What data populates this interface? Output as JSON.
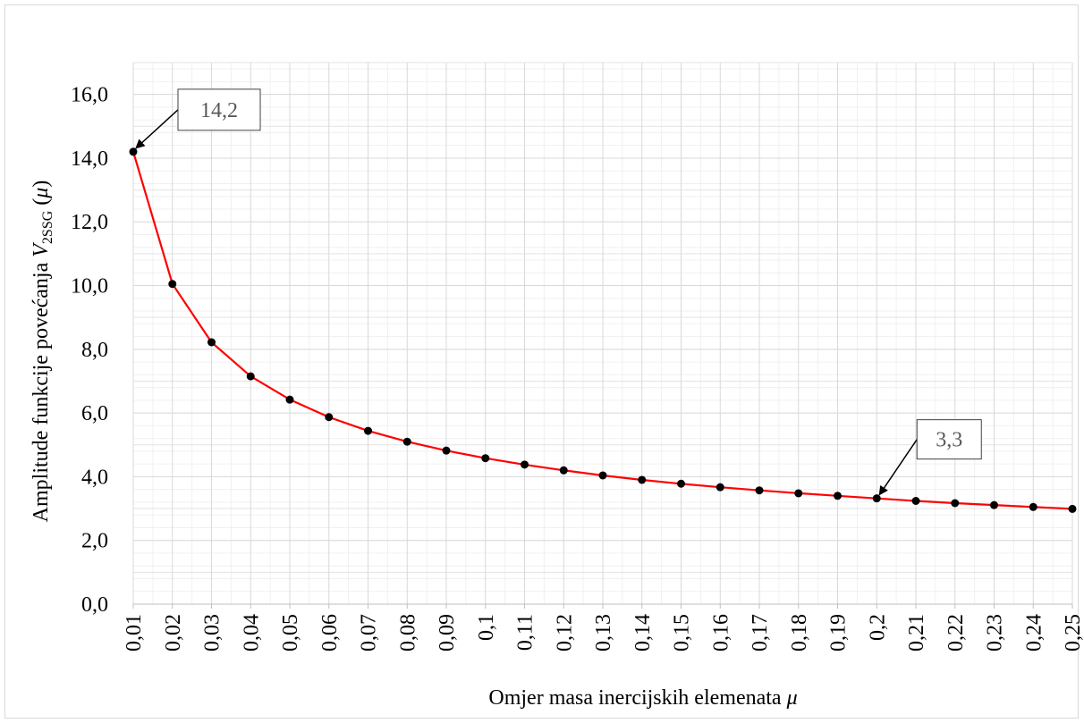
{
  "chart_data": {
    "type": "line",
    "xlabel": {
      "text": "Omjer masa inercijskih elemenata ",
      "symbol": "μ"
    },
    "ylabel": {
      "prefix": "Amplitude funkcije povećanja ",
      "var": "V",
      "sub": "2SSG",
      "suffix": " (",
      "sym": "μ",
      "close": ")"
    },
    "categories": [
      "0,01",
      "0,02",
      "0,03",
      "0,04",
      "0,05",
      "0,06",
      "0,07",
      "0,08",
      "0,09",
      "0,1",
      "0,11",
      "0,12",
      "0,13",
      "0,14",
      "0,15",
      "0,16",
      "0,17",
      "0,18",
      "0,19",
      "0,2",
      "0,21",
      "0,22",
      "0,23",
      "0,24",
      "0,25"
    ],
    "values": [
      14.2,
      10.05,
      8.22,
      7.15,
      6.42,
      5.87,
      5.44,
      5.1,
      4.82,
      4.58,
      4.38,
      4.2,
      4.04,
      3.9,
      3.78,
      3.67,
      3.57,
      3.48,
      3.4,
      3.32,
      3.24,
      3.17,
      3.11,
      3.05,
      2.99
    ],
    "ylim": [
      0,
      17
    ],
    "yticks": [
      "0,0",
      "2,0",
      "4,0",
      "6,0",
      "8,0",
      "10,0",
      "12,0",
      "14,0",
      "16,0"
    ],
    "grid": true,
    "line_color": "#ff0000",
    "marker_color": "#000000",
    "annotations": [
      {
        "label": "14,2",
        "index": 0
      },
      {
        "label": "3,3",
        "index": 19
      }
    ]
  }
}
